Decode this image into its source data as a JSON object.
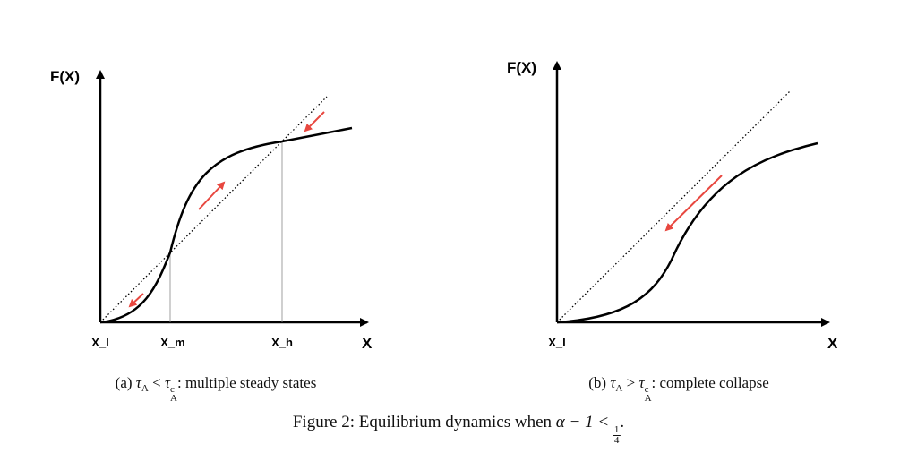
{
  "panels": [
    {
      "y_label": "F(X)",
      "x_label": "X",
      "ticks": [
        "X_l",
        "X_m",
        "X_h"
      ],
      "caption": {
        "label": "(a)",
        "tau": "τ",
        "sub": "A",
        "rel": "<",
        "tau_c": "τ",
        "sup_c": "c",
        "sub_c": "A",
        "text": ": multiple steady states"
      }
    },
    {
      "y_label": "F(X)",
      "x_label": "X",
      "ticks": [
        "X_l"
      ],
      "caption": {
        "label": "(b)",
        "tau": "τ",
        "sub": "A",
        "rel": ">",
        "tau_c": "τ",
        "sup_c": "c",
        "sub_c": "A",
        "text": ": complete collapse"
      }
    }
  ],
  "figure_caption": {
    "prefix": "Figure 2: Equilibrium dynamics when",
    "expr": "α − 1 <",
    "num": "1",
    "den": "4",
    "end": "."
  }
}
